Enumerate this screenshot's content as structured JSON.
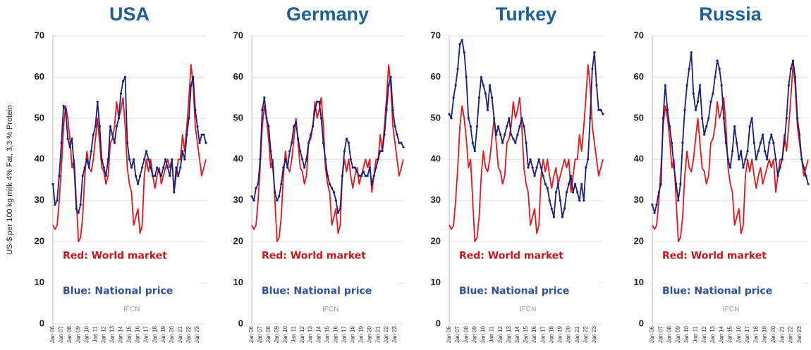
{
  "chart_data": [
    {
      "type": "line",
      "title": "USA",
      "y_label": "US-$ per 100 kg milk 4% Fat, 3,3 % Protein",
      "watermark": "IFCN",
      "categories": [
        "Jan 06",
        null,
        null,
        null,
        "Jan 07",
        null,
        null,
        null,
        "Jan 08",
        null,
        null,
        null,
        "Jan 09",
        null,
        null,
        null,
        "Jan 10",
        null,
        null,
        null,
        "Jan 11",
        null,
        null,
        null,
        "Jan 12",
        null,
        null,
        null,
        "Jan 13",
        null,
        null,
        null,
        "Jan 14",
        null,
        null,
        null,
        "Jan 15",
        null,
        null,
        null,
        "Jan 16",
        null,
        null,
        null,
        "Jan 17",
        null,
        null,
        null,
        "Jan 18",
        null,
        null,
        null,
        "Jan 19",
        null,
        null,
        null,
        "Jan 20",
        null,
        null,
        null,
        "Jan 21",
        null,
        null,
        null,
        "Jan 22",
        null,
        null,
        null,
        "Jan 23",
        null,
        null,
        null,
        null
      ],
      "ylim": [
        0,
        70
      ],
      "yticks": [
        0,
        10,
        20,
        30,
        40,
        50,
        60,
        70
      ],
      "grid": true,
      "series": [
        {
          "name": "Red: World market",
          "color": "#e8141b",
          "values": [
            24,
            23,
            24,
            30,
            38,
            48,
            53,
            50,
            45,
            38,
            40,
            30,
            20,
            21,
            26,
            36,
            42,
            38,
            37,
            40,
            45,
            50,
            44,
            38,
            37,
            34,
            36,
            44,
            45,
            48,
            54,
            50,
            52,
            55,
            48,
            38,
            34,
            32,
            24,
            26,
            28,
            22,
            24,
            36,
            40,
            37,
            40,
            36,
            33,
            36,
            38,
            34,
            36,
            38,
            40,
            38,
            40,
            32,
            36,
            40,
            40,
            46,
            42,
            48,
            55,
            63,
            58,
            48,
            44,
            40,
            36,
            38,
            40
          ]
        },
        {
          "name": "Blue: National price",
          "color": "#1a1f7a",
          "values": [
            34,
            29,
            30,
            36,
            44,
            53,
            52,
            45,
            43,
            45,
            38,
            28,
            27,
            29,
            36,
            38,
            40,
            38,
            42,
            46,
            48,
            54,
            48,
            40,
            38,
            36,
            40,
            48,
            46,
            44,
            48,
            50,
            56,
            59,
            60,
            44,
            40,
            38,
            40,
            36,
            34,
            36,
            38,
            40,
            42,
            40,
            38,
            36,
            36,
            38,
            37,
            36,
            38,
            40,
            38,
            36,
            40,
            32,
            38,
            36,
            38,
            42,
            40,
            46,
            50,
            58,
            60,
            52,
            48,
            44,
            46,
            46,
            44
          ]
        }
      ]
    },
    {
      "type": "line",
      "title": "Germany",
      "watermark": "IFCN",
      "categories": [
        "Jan 06",
        null,
        null,
        null,
        "Jan 07",
        null,
        null,
        null,
        "Jan 08",
        null,
        null,
        null,
        "Jan 09",
        null,
        null,
        null,
        "Jan 10",
        null,
        null,
        null,
        "Jan 11",
        null,
        null,
        null,
        "Jan 12",
        null,
        null,
        null,
        "Jan 13",
        null,
        null,
        null,
        "Jan 14",
        null,
        null,
        null,
        "Jan 15",
        null,
        null,
        null,
        "Jan 16",
        null,
        null,
        null,
        "Jan 17",
        null,
        null,
        null,
        "Jan 18",
        null,
        null,
        null,
        "Jan 19",
        null,
        null,
        null,
        "Jan 20",
        null,
        null,
        null,
        "Jan 21",
        null,
        null,
        null,
        "Jan 22",
        null,
        null,
        null,
        "Jan 23",
        null,
        null,
        null,
        null
      ],
      "ylim": [
        0,
        70
      ],
      "yticks": [
        0,
        10,
        20,
        30,
        40,
        50,
        60,
        70
      ],
      "grid": true,
      "series": [
        {
          "name": "Red: World market",
          "color": "#e8141b",
          "values": [
            24,
            23,
            24,
            30,
            38,
            48,
            53,
            50,
            45,
            38,
            40,
            30,
            20,
            21,
            26,
            36,
            42,
            38,
            37,
            40,
            45,
            50,
            44,
            38,
            37,
            34,
            36,
            44,
            45,
            48,
            54,
            50,
            52,
            55,
            48,
            38,
            34,
            32,
            24,
            26,
            28,
            22,
            24,
            36,
            40,
            37,
            40,
            36,
            33,
            36,
            38,
            34,
            36,
            38,
            40,
            38,
            40,
            32,
            36,
            40,
            40,
            46,
            42,
            48,
            55,
            63,
            58,
            48,
            44,
            40,
            36,
            38,
            40
          ]
        },
        {
          "name": "Blue: National price",
          "color": "#1a1f7a",
          "values": [
            31,
            30,
            33,
            34,
            40,
            52,
            55,
            50,
            48,
            42,
            38,
            32,
            30,
            31,
            34,
            38,
            40,
            38,
            42,
            44,
            48,
            49,
            45,
            42,
            40,
            38,
            40,
            44,
            46,
            48,
            52,
            54,
            54,
            50,
            44,
            40,
            36,
            34,
            33,
            32,
            30,
            27,
            28,
            36,
            42,
            45,
            44,
            40,
            38,
            38,
            37,
            36,
            36,
            37,
            36,
            36,
            38,
            34,
            36,
            38,
            40,
            42,
            42,
            46,
            52,
            58,
            60,
            52,
            48,
            46,
            44,
            44,
            43
          ]
        }
      ]
    },
    {
      "type": "line",
      "title": "Turkey",
      "watermark": "IFCN",
      "categories": [
        "Jan 06",
        null,
        null,
        null,
        "Jan 07",
        null,
        null,
        null,
        "Jan 08",
        null,
        null,
        null,
        "Jan 09",
        null,
        null,
        null,
        "Jan 10",
        null,
        null,
        null,
        "Jan 11",
        null,
        null,
        null,
        "Jan 12",
        null,
        null,
        null,
        "Jan 13",
        null,
        null,
        null,
        "Jan 14",
        null,
        null,
        null,
        "Jan 15",
        null,
        null,
        null,
        "Jan 16",
        null,
        null,
        null,
        "Jan 17",
        null,
        null,
        null,
        "Jan 18",
        null,
        null,
        null,
        "Jan 19",
        null,
        null,
        null,
        "Jan 20",
        null,
        null,
        null,
        "Jan 21",
        null,
        null,
        null,
        "Jan 22",
        null,
        null,
        null,
        "Jan 23",
        null,
        null,
        null,
        null
      ],
      "ylim": [
        0,
        70
      ],
      "yticks": [
        0,
        10,
        20,
        30,
        40,
        50,
        60,
        70
      ],
      "grid": true,
      "series": [
        {
          "name": "Red: World market",
          "color": "#e8141b",
          "values": [
            24,
            23,
            24,
            30,
            38,
            48,
            53,
            50,
            45,
            38,
            40,
            30,
            20,
            21,
            26,
            36,
            42,
            38,
            37,
            40,
            45,
            50,
            44,
            38,
            37,
            34,
            36,
            44,
            45,
            48,
            54,
            50,
            52,
            55,
            48,
            38,
            34,
            32,
            24,
            26,
            28,
            22,
            24,
            36,
            40,
            37,
            40,
            36,
            33,
            36,
            38,
            34,
            36,
            38,
            40,
            38,
            40,
            32,
            36,
            40,
            40,
            46,
            42,
            48,
            55,
            63,
            58,
            48,
            44,
            40,
            36,
            38,
            40
          ]
        },
        {
          "name": "Blue: National price",
          "color": "#1a1f7a",
          "values": [
            51,
            50,
            55,
            58,
            62,
            68,
            69,
            66,
            60,
            50,
            48,
            44,
            42,
            48,
            55,
            60,
            58,
            56,
            52,
            58,
            55,
            50,
            46,
            48,
            46,
            44,
            46,
            48,
            50,
            46,
            45,
            44,
            46,
            48,
            50,
            48,
            44,
            38,
            40,
            38,
            36,
            38,
            40,
            38,
            36,
            34,
            33,
            30,
            28,
            26,
            32,
            34,
            30,
            26,
            28,
            32,
            34,
            36,
            32,
            34,
            32,
            30,
            34,
            30,
            38,
            40,
            50,
            62,
            66,
            58,
            52,
            52,
            51
          ]
        }
      ]
    },
    {
      "type": "line",
      "title": "Russia",
      "watermark": "IFCN",
      "categories": [
        "Jan 06",
        null,
        null,
        null,
        "Jan 07",
        null,
        null,
        null,
        "Jan 08",
        null,
        null,
        null,
        "Jan 09",
        null,
        null,
        null,
        "Jan 10",
        null,
        null,
        null,
        "Jan 11",
        null,
        null,
        null,
        "Jan 12",
        null,
        null,
        null,
        "Jan 13",
        null,
        null,
        null,
        "Jan 14",
        null,
        null,
        null,
        "Jan 15",
        null,
        null,
        null,
        "Jan 16",
        null,
        null,
        null,
        "Jan 17",
        null,
        null,
        null,
        "Jan 18",
        null,
        null,
        null,
        "Jan 19",
        null,
        null,
        null,
        "Jan 20",
        null,
        null,
        null,
        "Jan 21",
        null,
        null,
        null,
        "Jan 22",
        null,
        null,
        null,
        "Jan 23",
        null,
        null,
        null,
        null
      ],
      "ylim": [
        0,
        70
      ],
      "yticks": [
        0,
        10,
        20,
        30,
        40,
        50,
        60,
        70
      ],
      "grid": true,
      "series": [
        {
          "name": "Red: World market",
          "color": "#e8141b",
          "values": [
            24,
            23,
            24,
            30,
            38,
            48,
            53,
            50,
            45,
            38,
            40,
            30,
            20,
            21,
            26,
            36,
            42,
            38,
            37,
            40,
            45,
            50,
            44,
            38,
            37,
            34,
            36,
            44,
            45,
            48,
            54,
            50,
            52,
            55,
            48,
            38,
            34,
            32,
            24,
            26,
            28,
            22,
            24,
            36,
            40,
            37,
            40,
            36,
            33,
            36,
            38,
            34,
            36,
            38,
            40,
            38,
            40,
            32,
            36,
            40,
            40,
            46,
            42,
            48,
            55,
            63,
            58,
            48,
            44,
            40,
            36,
            38,
            40
          ]
        },
        {
          "name": "Blue: National price",
          "color": "#1a1f7a",
          "values": [
            29,
            27,
            29,
            32,
            34,
            50,
            58,
            52,
            48,
            44,
            38,
            34,
            30,
            34,
            44,
            52,
            58,
            62,
            66,
            56,
            52,
            54,
            58,
            50,
            46,
            48,
            50,
            54,
            56,
            60,
            64,
            62,
            58,
            50,
            44,
            40,
            38,
            42,
            48,
            44,
            40,
            42,
            38,
            40,
            42,
            48,
            50,
            44,
            40,
            42,
            44,
            46,
            42,
            40,
            44,
            46,
            44,
            40,
            36,
            38,
            40,
            44,
            50,
            58,
            62,
            64,
            60,
            50,
            46,
            40,
            38,
            36,
            34
          ]
        }
      ]
    }
  ]
}
